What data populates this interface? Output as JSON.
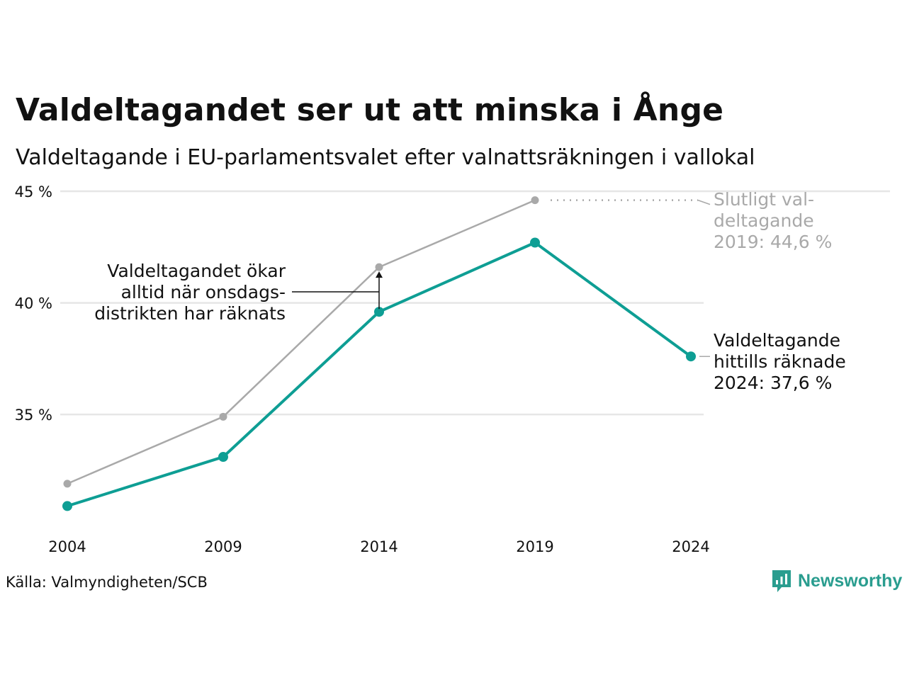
{
  "header": {
    "title": "Valdeltagandet ser ut att minska i Ånge",
    "subtitle": "Valdeltagande i EU-parlamentsvalet efter valnattsräkningen i vallokal"
  },
  "footer": {
    "source": "Källa: Valmyndigheten/SCB",
    "logo_text": "Newsworthy"
  },
  "colors": {
    "prelim": "#0e9e94",
    "final": "#a9a9a9",
    "grid": "#e6e6e6",
    "text": "#111111",
    "muted": "#a9a9a9"
  },
  "chart_data": {
    "type": "line",
    "x": [
      2004,
      2009,
      2014,
      2019,
      2024
    ],
    "x_tick_labels": [
      "2004",
      "2009",
      "2014",
      "2019",
      "2024"
    ],
    "y_ticks": [
      35,
      40,
      45
    ],
    "y_tick_labels": [
      "35 %",
      "40 %",
      "45 %"
    ],
    "ylim": [
      30.5,
      45
    ],
    "series": [
      {
        "key": "final",
        "values": [
          31.9,
          34.9,
          41.6,
          44.6,
          null
        ]
      },
      {
        "key": "prelim",
        "values": [
          30.9,
          33.1,
          39.6,
          42.7,
          37.6
        ]
      }
    ],
    "annotations": {
      "final_label": [
        "Slutligt val-",
        "deltagande",
        "2019: 44,6 %"
      ],
      "prelim_label": [
        "Valdeltagande",
        "hittills räknade",
        "2024: 37,6 %"
      ],
      "note": [
        "Valdeltagandet ökar",
        "alltid när onsdags-",
        "distrikten har räknats"
      ]
    }
  }
}
